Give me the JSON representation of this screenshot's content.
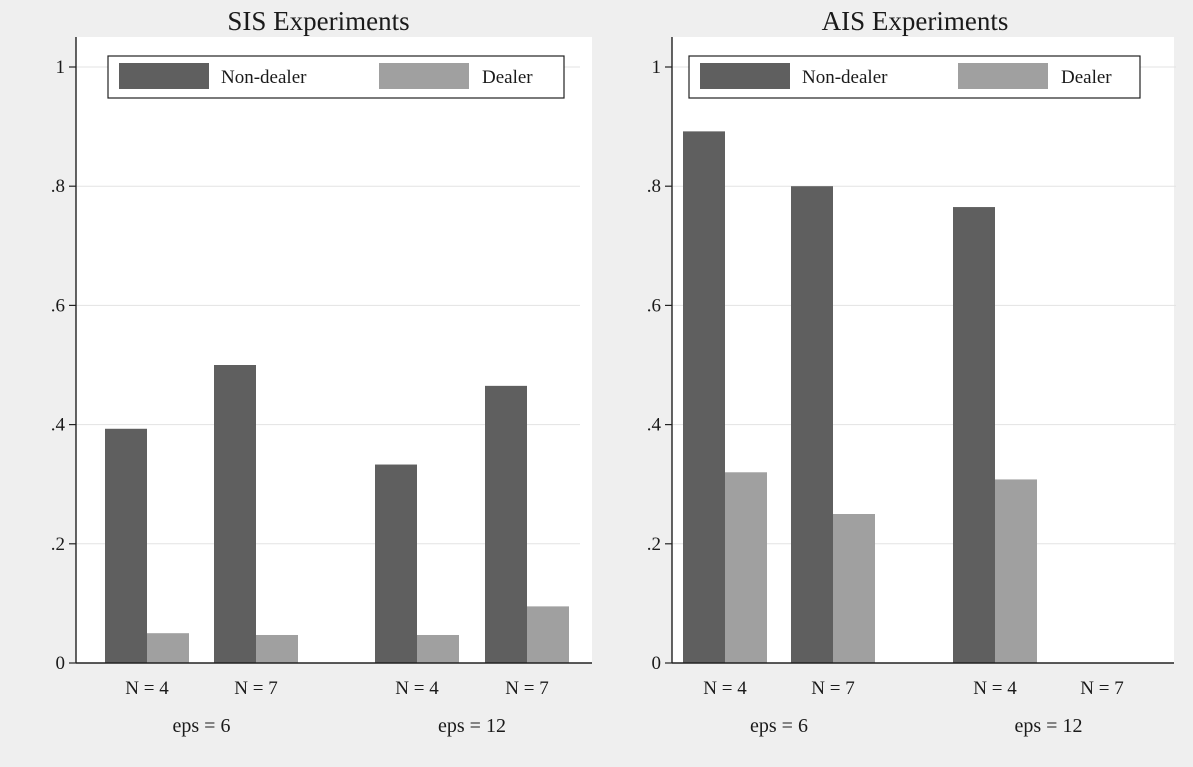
{
  "chart_data": [
    {
      "type": "bar",
      "title": "SIS Experiments",
      "groups": [
        {
          "label": "eps = 6",
          "categories": [
            "N = 4",
            "N = 7"
          ]
        },
        {
          "label": "eps = 12",
          "categories": [
            "N = 4",
            "N = 7"
          ]
        }
      ],
      "series": [
        {
          "name": "Non-dealer",
          "color": "#5f5f5f",
          "values": [
            0.393,
            0.5,
            0.333,
            0.465
          ]
        },
        {
          "name": "Dealer",
          "color": "#a0a0a0",
          "values": [
            0.05,
            0.047,
            0.047,
            0.095
          ]
        }
      ],
      "ylim": [
        0,
        1
      ],
      "yticks": [
        0,
        0.2,
        0.4,
        0.6,
        0.8,
        1
      ],
      "ytick_labels": [
        "0",
        ".2",
        ".4",
        ".6",
        ".8",
        "1"
      ],
      "grid": true,
      "legend_position": "top"
    },
    {
      "type": "bar",
      "title": "AIS Experiments",
      "groups": [
        {
          "label": "eps = 6",
          "categories": [
            "N = 4",
            "N = 7"
          ]
        },
        {
          "label": "eps = 12",
          "categories": [
            "N = 4",
            "N = 7"
          ]
        }
      ],
      "series": [
        {
          "name": "Non-dealer",
          "color": "#5f5f5f",
          "values": [
            0.892,
            0.8,
            0.765,
            0
          ]
        },
        {
          "name": "Dealer",
          "color": "#a0a0a0",
          "values": [
            0.32,
            0.25,
            0.308,
            0
          ]
        }
      ],
      "ylim": [
        0,
        1
      ],
      "yticks": [
        0,
        0.2,
        0.4,
        0.6,
        0.8,
        1
      ],
      "ytick_labels": [
        "0",
        ".2",
        ".4",
        ".6",
        ".8",
        "1"
      ],
      "grid": true,
      "legend_position": "top"
    }
  ]
}
